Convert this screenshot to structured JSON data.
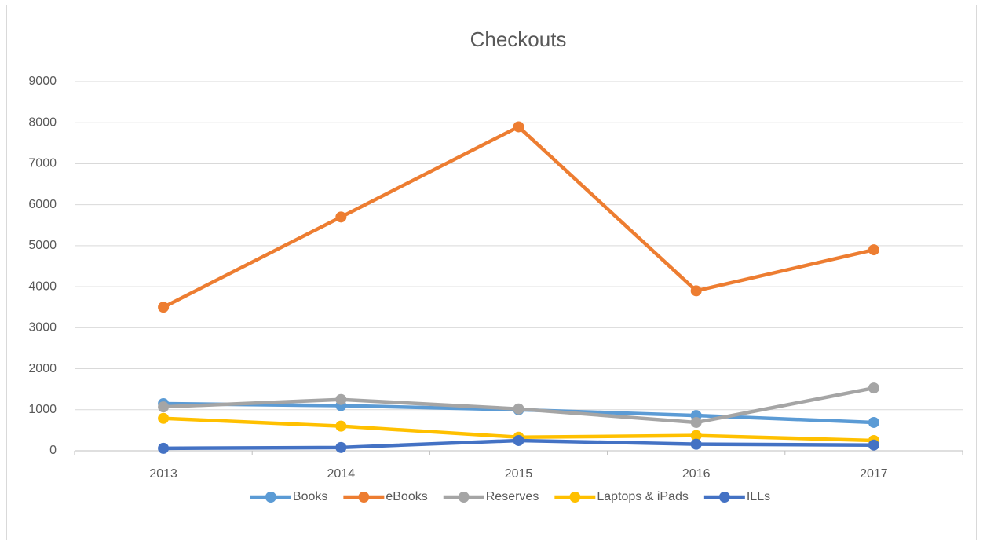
{
  "chart_data": {
    "type": "line",
    "title": "Checkouts",
    "categories": [
      "2013",
      "2014",
      "2015",
      "2016",
      "2017"
    ],
    "series": [
      {
        "name": "Books",
        "color": "#5b9bd5",
        "values": [
          1150,
          1100,
          1000,
          860,
          690
        ]
      },
      {
        "name": "eBooks",
        "color": "#ed7d31",
        "values": [
          3500,
          5700,
          7900,
          3900,
          4900
        ]
      },
      {
        "name": "Reserves",
        "color": "#a5a5a5",
        "values": [
          1070,
          1250,
          1020,
          690,
          1530
        ]
      },
      {
        "name": "Laptops & iPads",
        "color": "#ffc000",
        "values": [
          790,
          600,
          330,
          370,
          250
        ]
      },
      {
        "name": "ILLs",
        "color": "#4472c4",
        "values": [
          60,
          80,
          250,
          160,
          140
        ]
      }
    ],
    "ylim": [
      0,
      9000
    ],
    "yticks": [
      0,
      1000,
      2000,
      3000,
      4000,
      5000,
      6000,
      7000,
      8000,
      9000
    ],
    "grid": true,
    "legend": "bottom"
  }
}
